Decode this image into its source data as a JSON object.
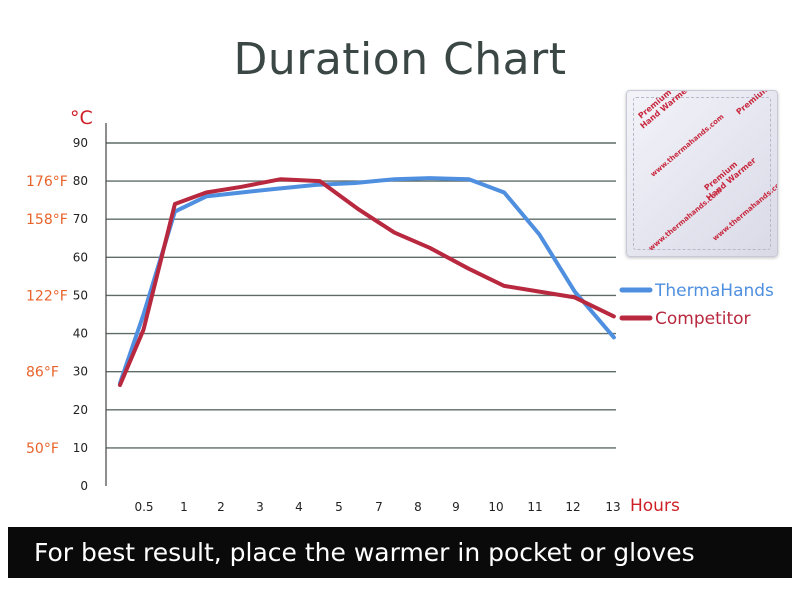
{
  "title": "Duration Chart",
  "footer": "For best result, place the warmer in pocket or gloves",
  "colors": {
    "thermahands": "#4f8fe0",
    "competitor": "#b8283e",
    "grid": "#5f6b67",
    "fahrenheit": "#e8632b",
    "unit": "#cf1f26"
  },
  "chart_data": {
    "type": "line",
    "ylabel": "°C",
    "xlabel": "Hours",
    "x": [
      "0.5",
      "1",
      "2",
      "3",
      "4",
      "5",
      "7",
      "8",
      "9",
      "10",
      "11",
      "12",
      "13"
    ],
    "yticks": [
      0,
      10,
      20,
      30,
      40,
      50,
      60,
      70,
      80,
      90
    ],
    "ylim": [
      0,
      90
    ],
    "fahrenheit_ticks": [
      {
        "label": "176°F",
        "celsius": 80
      },
      {
        "label": "158°F",
        "celsius": 70
      },
      {
        "label": "122°F",
        "celsius": 50
      },
      {
        "label": "86°F",
        "celsius": 30
      },
      {
        "label": "50°F",
        "celsius": 10
      }
    ],
    "grid": true,
    "legend": "right",
    "series": [
      {
        "name": "ThermaHands",
        "color": "#4f8fe0",
        "points": [
          [
            0,
            27
          ],
          [
            0.6,
            45
          ],
          [
            1.4,
            72
          ],
          [
            2.2,
            76
          ],
          [
            3.1,
            77
          ],
          [
            4,
            78
          ],
          [
            5,
            79
          ],
          [
            6,
            79.5
          ],
          [
            7,
            80.5
          ],
          [
            7.9,
            80.8
          ],
          [
            8.9,
            80.5
          ],
          [
            9.8,
            77
          ],
          [
            10.7,
            66
          ],
          [
            11.6,
            51
          ],
          [
            12.6,
            39
          ]
        ]
      },
      {
        "name": "Competitor",
        "color": "#b8283e",
        "points": [
          [
            0,
            26.5
          ],
          [
            0.6,
            41
          ],
          [
            1.4,
            74
          ],
          [
            2.2,
            77
          ],
          [
            3.1,
            78.5
          ],
          [
            4.1,
            80.5
          ],
          [
            5.1,
            80
          ],
          [
            6.1,
            72.5
          ],
          [
            7,
            66.5
          ],
          [
            7.9,
            62.5
          ],
          [
            8.9,
            57
          ],
          [
            9.8,
            52.5
          ],
          [
            10.7,
            51
          ],
          [
            11.6,
            49.5
          ],
          [
            12.6,
            44.5
          ]
        ]
      }
    ]
  },
  "packet": {
    "lines": [
      "Premium",
      "Hand Warmer",
      "www.thermahands.com"
    ]
  }
}
